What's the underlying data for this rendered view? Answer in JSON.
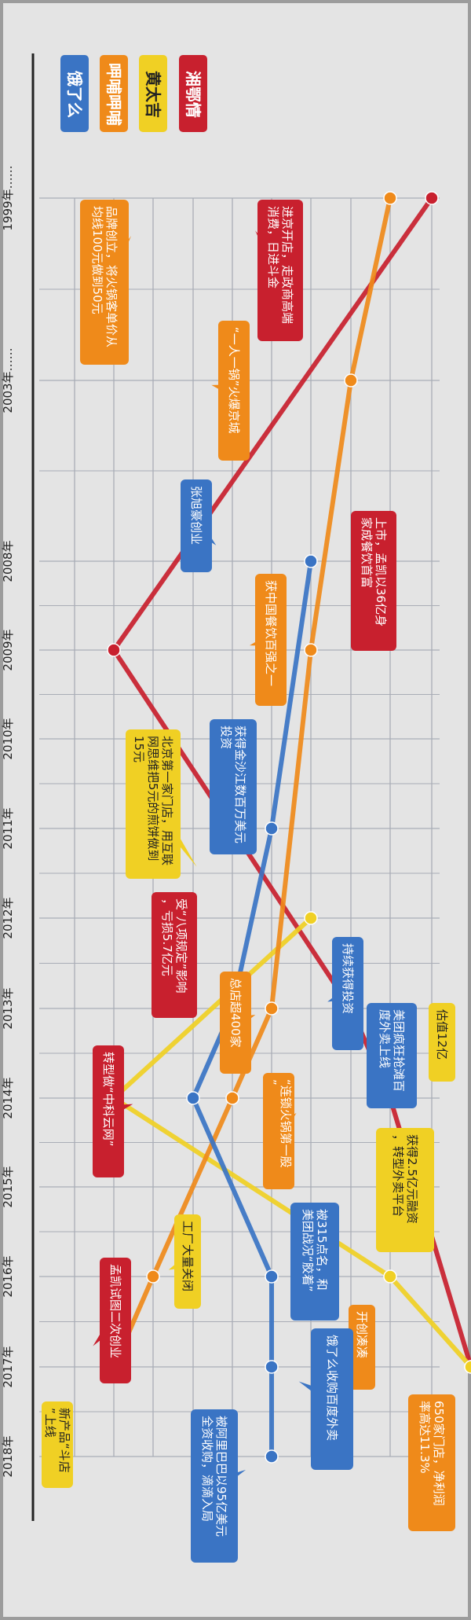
{
  "colors": {
    "xiangeqing": "#c8202e",
    "huangtaiji": "#f0d024",
    "hubuhubu": "#ef8a1a",
    "eleme": "#3a74c4",
    "grid": "#a9adb6",
    "frame": "#9c9c9c",
    "background": "#e4e4e4"
  },
  "chart_data": {
    "type": "line",
    "title": "",
    "xlabel": "",
    "ylabel": "",
    "legend_position": "top",
    "x_ticks": [
      "1999年……",
      "2003年……",
      "2008年",
      "2009年",
      "2010年",
      "2011年",
      "2012年",
      "2013年",
      "2014年",
      "2015年",
      "2016年",
      "2017年",
      "2018年"
    ],
    "series": [
      {
        "name": "湘鄂情",
        "color": "#c8202e",
        "points": [
          {
            "x": "1999年……",
            "y": 9
          },
          {
            "x": "2009年",
            "y": 1
          },
          {
            "x": "2013年",
            "y": 7
          },
          {
            "x": "2014年",
            "y": 8
          },
          {
            "x": "2017年",
            "y": 10
          }
        ]
      },
      {
        "name": "黄太吉",
        "color": "#f0d024",
        "points": [
          {
            "x": "2012年",
            "y": 6
          },
          {
            "x": "2014年",
            "y": 1
          },
          {
            "x": "2016年",
            "y": 8
          },
          {
            "x": "2017年",
            "y": 10
          }
        ]
      },
      {
        "name": "呷哺呷哺",
        "color": "#ef8a1a",
        "points": [
          {
            "x": "1999年……",
            "y": 8
          },
          {
            "x": "2003年……",
            "y": 7
          },
          {
            "x": "2009年",
            "y": 6
          },
          {
            "x": "2013年",
            "y": 5
          },
          {
            "x": "2014年",
            "y": 4
          },
          {
            "x": "2016年",
            "y": 2
          },
          {
            "x": "2017年",
            "y": 1
          }
        ]
      },
      {
        "name": "饿了么",
        "color": "#3a74c4",
        "points": [
          {
            "x": "2008年",
            "y": 6
          },
          {
            "x": "2011年",
            "y": 5
          },
          {
            "x": "2013年",
            "y": 4
          },
          {
            "x": "2014年",
            "y": 3
          },
          {
            "x": "2016年",
            "y": 5
          },
          {
            "x": "2017年",
            "y": 5
          },
          {
            "x": "2018年",
            "y": 5
          }
        ]
      }
    ],
    "annotations": [
      {
        "series": "湘鄂情",
        "x": "1999年……",
        "text": "进京开店，走政商高端消费，日进斗金"
      },
      {
        "series": "湘鄂情",
        "x": "2009年",
        "text": "上市，孟凯以36亿身家成餐饮首富"
      },
      {
        "series": "湘鄂情",
        "x": "2013年",
        "text": "受“八项规定”影响，亏损5.7亿元"
      },
      {
        "series": "湘鄂情",
        "x": "2014年",
        "text": "转型做“中科云网”"
      },
      {
        "series": "湘鄂情",
        "x": "2017年",
        "text": "孟凯试图二次创业"
      },
      {
        "series": "黄太吉",
        "x": "2012年",
        "text": "北京第一家门店，用互联网思维把5元的煎饼做到15元"
      },
      {
        "series": "黄太吉",
        "x": "2014年",
        "text": "估值12亿"
      },
      {
        "series": "黄太吉",
        "x": "2016年",
        "text": "工厂大量关闭"
      },
      {
        "series": "黄太吉",
        "x": "2017年",
        "text": "新产品“斗店”上线"
      },
      {
        "series": "黄太吉",
        "x": "2015年",
        "text": "获得2.5亿元融资，转型外卖平台"
      },
      {
        "series": "呷哺呷哺",
        "x": "1999年……",
        "text": "品牌创立，将火锅客单价从均线100元做到50元"
      },
      {
        "series": "呷哺呷哺",
        "x": "2003年……",
        "text": "“一人一锅”火爆京城"
      },
      {
        "series": "呷哺呷哺",
        "x": "2009年",
        "text": "获中国餐饮百强之一"
      },
      {
        "series": "呷哺呷哺",
        "x": "2013年",
        "text": "总店超400家"
      },
      {
        "series": "呷哺呷哺",
        "x": "2014年",
        "text": "“连锁火锅第一股”"
      },
      {
        "series": "呷哺呷哺",
        "x": "2016年",
        "text": "开创凑凑"
      },
      {
        "series": "呷哺呷哺",
        "x": "2017年",
        "text": "650家门店，净利润率高达11.3%"
      },
      {
        "series": "饿了么",
        "x": "2008年",
        "text": "张旭豪创业"
      },
      {
        "series": "饿了么",
        "x": "2011年",
        "text": "获得金沙江数百万美元投资"
      },
      {
        "series": "饿了么",
        "x": "2013年",
        "text": "持续获得投资"
      },
      {
        "series": "饿了么",
        "x": "2014年",
        "text": "美团疯狂抢滩百度外卖上线"
      },
      {
        "series": "饿了么",
        "x": "2016年",
        "text": "被315点名，和美团战况“胶着”"
      },
      {
        "series": "饿了么",
        "x": "2017年",
        "text": "饿了么收购百度外卖"
      },
      {
        "series": "饿了么",
        "x": "2018年",
        "text": "被阿里巴巴以95亿美元全资收购，滴滴入局"
      }
    ]
  }
}
